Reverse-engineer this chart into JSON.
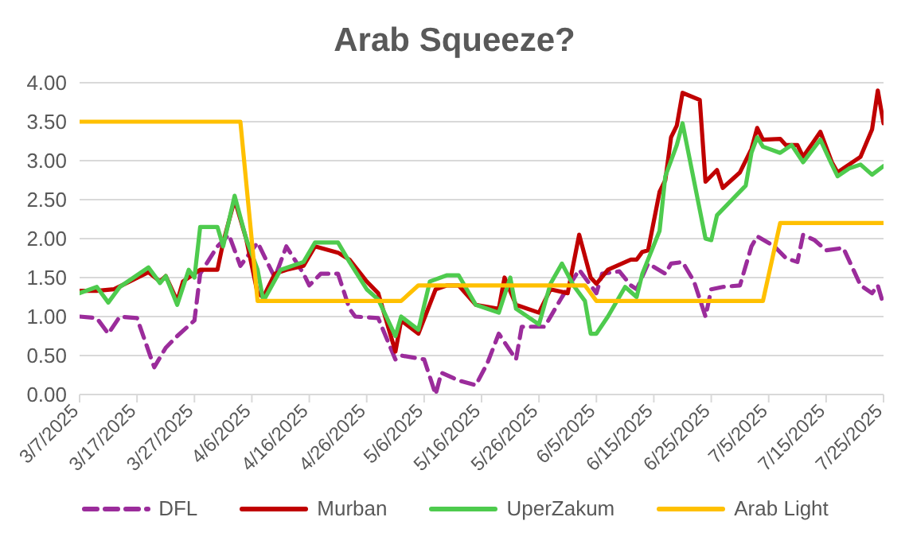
{
  "chart_data": {
    "type": "line",
    "title": "Arab Squeeze?",
    "xlim": [
      "2025-03-07",
      "2025-07-25"
    ],
    "xticks": [
      {
        "value": "2025-03-07",
        "label": "3/7/2025"
      },
      {
        "value": "2025-03-17",
        "label": "3/17/2025"
      },
      {
        "value": "2025-03-27",
        "label": "3/27/2025"
      },
      {
        "value": "2025-04-06",
        "label": "4/6/2025"
      },
      {
        "value": "2025-04-16",
        "label": "4/16/2025"
      },
      {
        "value": "2025-04-26",
        "label": "4/26/2025"
      },
      {
        "value": "2025-05-06",
        "label": "5/6/2025"
      },
      {
        "value": "2025-05-16",
        "label": "5/16/2025"
      },
      {
        "value": "2025-05-26",
        "label": "5/26/2025"
      },
      {
        "value": "2025-06-05",
        "label": "6/5/2025"
      },
      {
        "value": "2025-06-15",
        "label": "6/15/2025"
      },
      {
        "value": "2025-06-25",
        "label": "6/25/2025"
      },
      {
        "value": "2025-07-05",
        "label": "7/5/2025"
      },
      {
        "value": "2025-07-15",
        "label": "7/15/2025"
      },
      {
        "value": "2025-07-25",
        "label": "7/25/2025"
      }
    ],
    "ylim": [
      0,
      4
    ],
    "yticks": [
      {
        "value": 0,
        "label": "0.00"
      },
      {
        "value": 0.5,
        "label": "0.50"
      },
      {
        "value": 1,
        "label": "1.00"
      },
      {
        "value": 1.5,
        "label": "1.50"
      },
      {
        "value": 2,
        "label": "2.00"
      },
      {
        "value": 2.5,
        "label": "2.50"
      },
      {
        "value": 3,
        "label": "3.00"
      },
      {
        "value": 3.5,
        "label": "3.50"
      },
      {
        "value": 4,
        "label": "4.00"
      }
    ],
    "grid": "y",
    "legend": "bottom",
    "marker": "none",
    "series": [
      {
        "name": "DFL",
        "color": "#9b2c9b",
        "line_style": "dashed",
        "x": [
          "2025-03-07",
          "2025-03-10",
          "2025-03-12",
          "2025-03-14",
          "2025-03-17",
          "2025-03-20",
          "2025-03-22",
          "2025-03-24",
          "2025-03-27",
          "2025-03-28",
          "2025-03-31",
          "2025-04-02",
          "2025-04-04",
          "2025-04-05",
          "2025-04-07",
          "2025-04-10",
          "2025-04-12",
          "2025-04-15",
          "2025-04-16",
          "2025-04-18",
          "2025-04-21",
          "2025-04-23",
          "2025-04-24",
          "2025-04-28",
          "2025-05-01",
          "2025-05-02",
          "2025-05-06",
          "2025-05-08",
          "2025-05-09",
          "2025-05-12",
          "2025-05-15",
          "2025-05-17",
          "2025-05-19",
          "2025-05-22",
          "2025-05-23",
          "2025-05-27",
          "2025-05-30",
          "2025-06-02",
          "2025-06-03",
          "2025-06-05",
          "2025-06-06",
          "2025-06-09",
          "2025-06-11",
          "2025-06-12",
          "2025-06-14",
          "2025-06-17",
          "2025-06-18",
          "2025-06-20",
          "2025-06-22",
          "2025-06-24",
          "2025-06-25",
          "2025-06-27",
          "2025-06-30",
          "2025-07-02",
          "2025-07-03",
          "2025-07-06",
          "2025-07-08",
          "2025-07-10",
          "2025-07-11",
          "2025-07-13",
          "2025-07-15",
          "2025-07-18",
          "2025-07-21",
          "2025-07-23",
          "2025-07-24",
          "2025-07-25"
        ],
        "values": [
          1.0,
          0.98,
          0.78,
          1.0,
          0.98,
          0.35,
          0.6,
          0.75,
          0.95,
          1.55,
          1.9,
          2.05,
          1.65,
          1.75,
          1.95,
          1.5,
          1.9,
          1.55,
          1.4,
          1.55,
          1.55,
          1.1,
          1.0,
          0.98,
          0.45,
          0.5,
          0.45,
          0.0,
          0.28,
          0.18,
          0.12,
          0.4,
          0.78,
          0.45,
          0.87,
          0.87,
          1.25,
          1.6,
          1.5,
          1.3,
          1.55,
          1.58,
          1.4,
          1.35,
          1.68,
          1.55,
          1.68,
          1.7,
          1.45,
          1.0,
          1.35,
          1.38,
          1.4,
          1.9,
          2.03,
          1.9,
          1.75,
          1.7,
          2.05,
          1.98,
          1.85,
          1.88,
          1.4,
          1.3,
          1.4,
          1.15
        ]
      },
      {
        "name": "Murban",
        "color": "#c00000",
        "line_style": "solid",
        "x": [
          "2025-03-07",
          "2025-03-10",
          "2025-03-13",
          "2025-03-19",
          "2025-03-21",
          "2025-03-22",
          "2025-03-24",
          "2025-03-25",
          "2025-03-27",
          "2025-03-28",
          "2025-03-31",
          "2025-04-01",
          "2025-04-03",
          "2025-04-05",
          "2025-04-07",
          "2025-04-08",
          "2025-04-10",
          "2025-04-12",
          "2025-04-15",
          "2025-04-17",
          "2025-04-21",
          "2025-04-23",
          "2025-04-26",
          "2025-04-28",
          "2025-05-01",
          "2025-05-02",
          "2025-05-05",
          "2025-05-08",
          "2025-05-10",
          "2025-05-12",
          "2025-05-15",
          "2025-05-19",
          "2025-05-20",
          "2025-05-22",
          "2025-05-26",
          "2025-05-28",
          "2025-05-31",
          "2025-06-02",
          "2025-06-04",
          "2025-06-05",
          "2025-06-07",
          "2025-06-11",
          "2025-06-12",
          "2025-06-13",
          "2025-06-14",
          "2025-06-16",
          "2025-06-17",
          "2025-06-18",
          "2025-06-19",
          "2025-06-20",
          "2025-06-23",
          "2025-06-24",
          "2025-06-26",
          "2025-06-27",
          "2025-06-30",
          "2025-07-02",
          "2025-07-03",
          "2025-07-04",
          "2025-07-07",
          "2025-07-08",
          "2025-07-10",
          "2025-07-11",
          "2025-07-14",
          "2025-07-16",
          "2025-07-17",
          "2025-07-21",
          "2025-07-23",
          "2025-07-24",
          "2025-07-25"
        ],
        "values": [
          1.33,
          1.33,
          1.35,
          1.57,
          1.45,
          1.52,
          1.2,
          1.45,
          1.55,
          1.6,
          1.6,
          1.95,
          2.5,
          2.0,
          1.3,
          1.25,
          1.55,
          1.6,
          1.65,
          1.9,
          1.82,
          1.73,
          1.45,
          1.3,
          0.55,
          0.95,
          0.78,
          1.35,
          1.4,
          1.4,
          1.15,
          1.1,
          1.5,
          1.15,
          1.05,
          1.35,
          1.3,
          2.05,
          1.5,
          1.42,
          1.6,
          1.73,
          1.73,
          1.83,
          1.85,
          2.6,
          2.75,
          3.3,
          3.45,
          3.87,
          3.78,
          2.73,
          2.88,
          2.65,
          2.85,
          3.15,
          3.42,
          3.27,
          3.28,
          3.2,
          3.2,
          3.05,
          3.37,
          2.98,
          2.85,
          3.05,
          3.4,
          3.9,
          3.48
        ]
      },
      {
        "name": "UperZakum",
        "color": "#4ecb4e",
        "line_style": "solid",
        "x": [
          "2025-03-07",
          "2025-03-10",
          "2025-03-12",
          "2025-03-14",
          "2025-03-19",
          "2025-03-21",
          "2025-03-22",
          "2025-03-24",
          "2025-03-26",
          "2025-03-27",
          "2025-03-28",
          "2025-03-31",
          "2025-04-01",
          "2025-04-03",
          "2025-04-05",
          "2025-04-07",
          "2025-04-08",
          "2025-04-11",
          "2025-04-15",
          "2025-04-17",
          "2025-04-21",
          "2025-04-23",
          "2025-04-26",
          "2025-04-28",
          "2025-05-01",
          "2025-05-02",
          "2025-05-05",
          "2025-05-07",
          "2025-05-10",
          "2025-05-12",
          "2025-05-15",
          "2025-05-19",
          "2025-05-21",
          "2025-05-22",
          "2025-05-26",
          "2025-05-28",
          "2025-05-30",
          "2025-06-01",
          "2025-06-03",
          "2025-06-04",
          "2025-06-05",
          "2025-06-07",
          "2025-06-10",
          "2025-06-12",
          "2025-06-13",
          "2025-06-16",
          "2025-06-17",
          "2025-06-19",
          "2025-06-20",
          "2025-06-24",
          "2025-06-25",
          "2025-06-26",
          "2025-07-01",
          "2025-07-02",
          "2025-07-03",
          "2025-07-04",
          "2025-07-07",
          "2025-07-09",
          "2025-07-11",
          "2025-07-14",
          "2025-07-16",
          "2025-07-17",
          "2025-07-19",
          "2025-07-21",
          "2025-07-23",
          "2025-07-25"
        ],
        "values": [
          1.3,
          1.38,
          1.18,
          1.38,
          1.63,
          1.43,
          1.52,
          1.15,
          1.6,
          1.5,
          2.15,
          2.15,
          1.9,
          2.55,
          2.0,
          1.6,
          1.2,
          1.6,
          1.7,
          1.95,
          1.95,
          1.7,
          1.35,
          1.22,
          0.75,
          1.0,
          0.83,
          1.45,
          1.53,
          1.53,
          1.15,
          1.05,
          1.5,
          1.1,
          0.9,
          1.42,
          1.68,
          1.4,
          1.2,
          0.78,
          0.78,
          1.0,
          1.38,
          1.25,
          1.55,
          2.1,
          2.8,
          3.2,
          3.48,
          2.0,
          1.98,
          2.3,
          2.68,
          3.1,
          3.3,
          3.18,
          3.1,
          3.2,
          2.98,
          3.27,
          2.95,
          2.8,
          2.9,
          2.95,
          2.82,
          2.93
        ]
      },
      {
        "name": "Arab Light",
        "color": "#ffc000",
        "line_style": "solid",
        "x": [
          "2025-03-07",
          "2025-04-04",
          "2025-04-07",
          "2025-05-02",
          "2025-05-05",
          "2025-06-03",
          "2025-06-05",
          "2025-07-04",
          "2025-07-07",
          "2025-07-25"
        ],
        "values": [
          3.5,
          3.5,
          1.2,
          1.2,
          1.4,
          1.4,
          1.2,
          1.2,
          2.2,
          2.2
        ]
      }
    ]
  }
}
